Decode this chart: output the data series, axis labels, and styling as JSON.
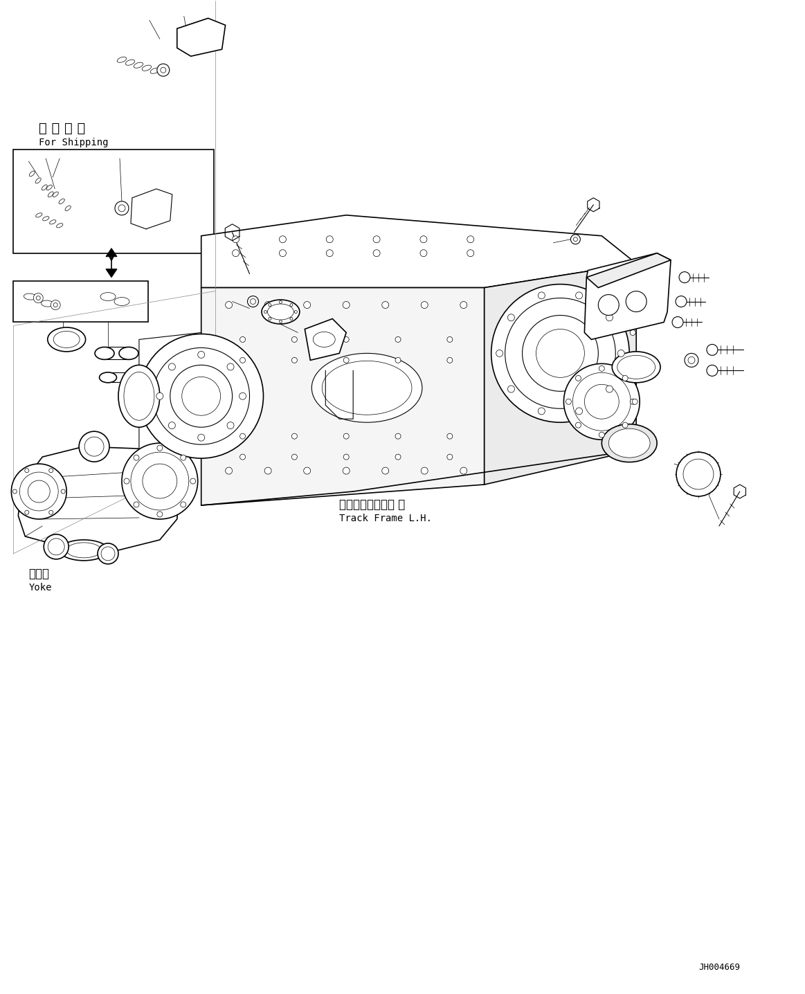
{
  "bg_color": "#ffffff",
  "line_color": "#000000",
  "fig_width": 11.63,
  "fig_height": 14.36,
  "dpi": 100,
  "part_id": "JH004669",
  "labels": {
    "shipping_jp": "運 搜 部 品",
    "shipping_en": "For Shipping",
    "track_frame_jp": "トラックフレーム 左",
    "track_frame_en": "Track Frame L.H.",
    "yoke_jp": "ヨーク",
    "yoke_en": "Yoke"
  }
}
